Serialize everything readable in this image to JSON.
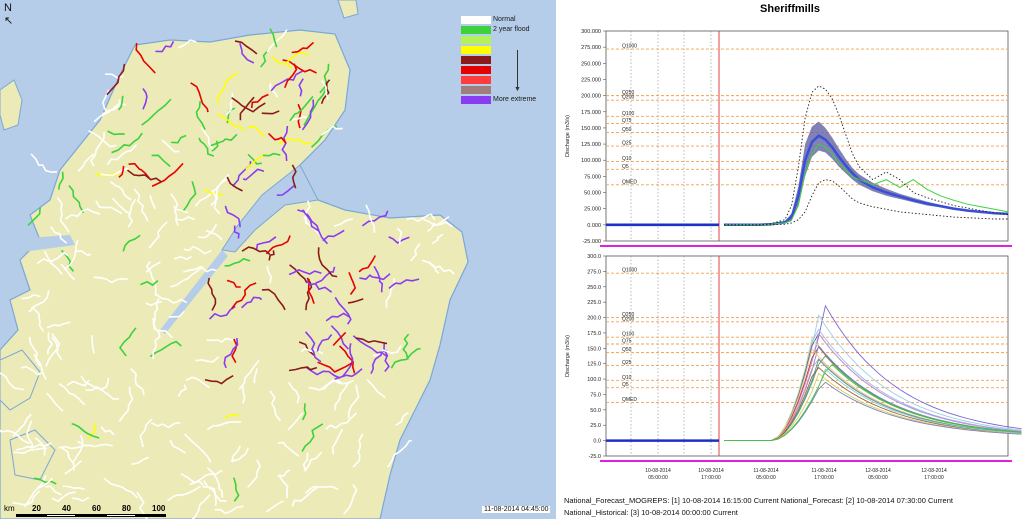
{
  "map": {
    "north_label": "N",
    "legend": [
      {
        "color": "#ffffff",
        "label": "Normal"
      },
      {
        "color": "#3cd23c",
        "label": "2 year flood"
      },
      {
        "color": "#b4f05a",
        "label": ""
      },
      {
        "color": "#ffff00",
        "label": ""
      },
      {
        "color": "#8b1a1a",
        "label": ""
      },
      {
        "color": "#e60000",
        "label": ""
      },
      {
        "color": "#ff3c3c",
        "label": ""
      },
      {
        "color": "#a07e7e",
        "label": ""
      },
      {
        "color": "#8a3cf0",
        "label": "More extreme"
      }
    ],
    "timestamp": "11-08-2014 04:45:00",
    "scale": {
      "unit": "km",
      "ticks": [
        "20",
        "40",
        "60",
        "80",
        "100"
      ]
    },
    "colors": {
      "sea": "#b5cde8",
      "land": "#ecebb7",
      "coast": "#7aa8d6",
      "river": "#ffffff"
    }
  },
  "chart_title": "Sheriffmills",
  "chart_data": [
    {
      "type": "line",
      "ylabel": "Discharge (m3/s)",
      "ylim": [
        -25,
        300
      ],
      "yticks": [
        "300.000",
        "275.000",
        "250.000",
        "225.000",
        "200.000",
        "175.000",
        "150.000",
        "125.000",
        "100.000",
        "75.000",
        "50.000",
        "25.000",
        "0.000",
        "-25.000"
      ],
      "thresholds": [
        {
          "name": "Q1000",
          "value": 272
        },
        {
          "name": "Q250",
          "value": 200
        },
        {
          "name": "Q200",
          "value": 193
        },
        {
          "name": "Q100",
          "value": 168
        },
        {
          "name": "Q75",
          "value": 157
        },
        {
          "name": "Q50",
          "value": 143
        },
        {
          "name": "Q25",
          "value": 122
        },
        {
          "name": "Q10",
          "value": 98
        },
        {
          "name": "Q5",
          "value": 86
        },
        {
          "name": "QMED",
          "value": 62
        }
      ],
      "x": [
        0,
        5,
        10,
        14,
        18,
        20,
        22,
        24,
        26,
        28,
        30,
        32,
        34,
        36,
        38,
        40,
        44,
        48,
        52,
        56,
        60,
        64,
        68,
        72,
        76,
        80,
        84
      ],
      "observed": [
        0,
        0,
        0,
        0,
        0,
        0,
        0
      ],
      "series": [
        {
          "name": "ensemble median",
          "values": [
            0,
            0,
            0,
            1,
            4,
            12,
            45,
            100,
            128,
            138,
            132,
            120,
            105,
            92,
            80,
            70,
            58,
            50,
            44,
            38,
            33,
            29,
            25,
            22,
            20,
            18,
            17
          ]
        },
        {
          "name": "ensemble upper",
          "values": [
            0,
            0,
            0,
            2,
            6,
            18,
            60,
            125,
            152,
            160,
            150,
            135,
            118,
            102,
            88,
            78,
            65,
            56,
            48,
            42,
            36,
            31,
            27,
            24,
            21,
            19,
            18
          ]
        },
        {
          "name": "ensemble lower",
          "values": [
            0,
            0,
            0,
            0,
            2,
            6,
            30,
            75,
            105,
            115,
            112,
            102,
            90,
            80,
            70,
            62,
            52,
            45,
            40,
            35,
            30,
            27,
            23,
            21,
            18,
            17,
            16
          ]
        },
        {
          "name": "deterministic",
          "values": [
            0,
            0,
            0,
            1,
            3,
            8,
            30,
            80,
            110,
            125,
            120,
            110,
            95,
            85,
            75,
            70,
            62,
            70,
            58,
            70,
            55,
            45,
            38,
            32,
            28,
            24,
            20
          ]
        },
        {
          "name": "dotted high",
          "values": [
            0,
            0,
            0,
            2,
            8,
            30,
            90,
            165,
            205,
            215,
            210,
            195,
            170,
            140,
            110,
            90,
            70,
            82,
            70,
            50,
            42,
            36,
            30,
            26,
            22,
            19,
            16
          ]
        },
        {
          "name": "dotted low",
          "values": [
            0,
            0,
            0,
            0,
            1,
            3,
            8,
            20,
            45,
            65,
            70,
            68,
            60,
            50,
            40,
            34,
            28,
            24,
            20,
            18,
            16,
            14,
            12,
            11,
            10,
            9,
            9
          ]
        }
      ]
    },
    {
      "type": "line",
      "ylabel": "Discharge (m3/s)",
      "ylim": [
        -25,
        300
      ],
      "yticks": [
        "300.0",
        "275.0",
        "250.0",
        "225.0",
        "200.0",
        "175.0",
        "150.0",
        "125.0",
        "100.0",
        "75.0",
        "50.0",
        "25.0",
        "0.0",
        "-25.0"
      ],
      "xticks": [
        "10-08-2014\n05:00:00",
        "10-08-2014\n17:00:00",
        "11-08-2014\n05:00:00",
        "11-08-2014\n17:00:00",
        "12-08-2014\n05:00:00",
        "12-08-2014\n17:00:00"
      ],
      "thresholds": [
        {
          "name": "Q1000",
          "value": 272
        },
        {
          "name": "Q250",
          "value": 200
        },
        {
          "name": "Q200",
          "value": 193
        },
        {
          "name": "Q100",
          "value": 168
        },
        {
          "name": "Q75",
          "value": 157
        },
        {
          "name": "Q50",
          "value": 143
        },
        {
          "name": "Q25",
          "value": 122
        },
        {
          "name": "Q10",
          "value": 98
        },
        {
          "name": "Q5",
          "value": 86
        },
        {
          "name": "QMED",
          "value": 62
        }
      ],
      "members": [
        {
          "peak": 215,
          "t": 30,
          "color": "#7a66d6"
        },
        {
          "peak": 200,
          "t": 28,
          "color": "#9fd0e8"
        },
        {
          "peak": 185,
          "t": 27,
          "color": "#a0b8ff"
        },
        {
          "peak": 178,
          "t": 27,
          "color": "#5a5aa8"
        },
        {
          "peak": 170,
          "t": 28,
          "color": "#c8a0c8"
        },
        {
          "peak": 162,
          "t": 26,
          "color": "#b8e6a0"
        },
        {
          "peak": 155,
          "t": 27,
          "color": "#c04040"
        },
        {
          "peak": 150,
          "t": 28,
          "color": "#7090d0"
        },
        {
          "peak": 145,
          "t": 26,
          "color": "#f0c080"
        },
        {
          "peak": 140,
          "t": 29,
          "color": "#60a060"
        },
        {
          "peak": 135,
          "t": 27,
          "color": "#e890b0"
        },
        {
          "peak": 128,
          "t": 28,
          "color": "#40a0a0"
        },
        {
          "peak": 120,
          "t": 27,
          "color": "#a06040"
        },
        {
          "peak": 112,
          "t": 30,
          "color": "#90d0d0"
        },
        {
          "peak": 105,
          "t": 28,
          "color": "#d0d060"
        },
        {
          "peak": 95,
          "t": 29,
          "color": "#8080c0"
        },
        {
          "peak": 125,
          "t": 31,
          "color": "#3cc83c"
        }
      ]
    }
  ],
  "footer": {
    "line1": "National_Forecast_MOGREPS: [1] 10-08-2014 16:15:00 Current National_Forecast: [2] 10-08-2014 07:30:00 Current",
    "line2": "National_Historical: [3] 10-08-2014 00:00:00 Current"
  }
}
